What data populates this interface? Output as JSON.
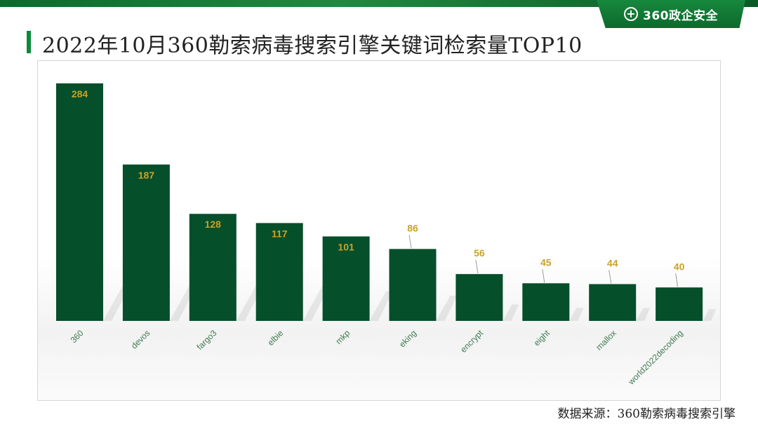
{
  "header": {
    "brand_text": "360政企安全",
    "brand_icon": "plus-circle-icon",
    "accent_color": "#0c8a3a"
  },
  "title": "2022年10月360勒索病毒搜索引擎关键词检索量TOP10",
  "source": "数据来源：360勒索病毒搜索引擎",
  "chart_data": {
    "type": "bar",
    "categories": [
      "360",
      "devos",
      "fargo3",
      "elbie",
      "mkp",
      "eking",
      "encrypt",
      "eight",
      "mallox",
      "world2022decoding"
    ],
    "values": [
      284,
      187,
      128,
      117,
      101,
      86,
      56,
      45,
      44,
      40
    ],
    "ylim": [
      0,
      284
    ],
    "bar_color": "#054f2a",
    "label_color": "#c9a227",
    "tick_label_color": "#3e7a52",
    "grid": false,
    "legend": "none"
  }
}
